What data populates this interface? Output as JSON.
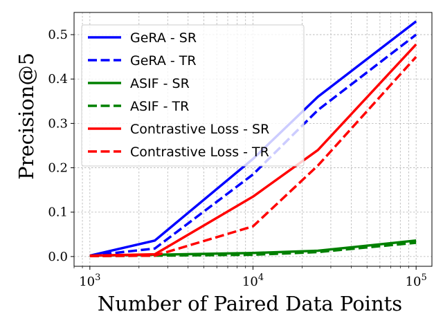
{
  "chart_data": {
    "type": "line",
    "title": "",
    "xlabel": "Number of Paired Data Points",
    "ylabel": "Precision@5",
    "xscale": "log",
    "x": [
      1000,
      2500,
      10000,
      25000,
      100000
    ],
    "xlim": [
      800,
      125000
    ],
    "ylim": [
      -0.022,
      0.55
    ],
    "xticks": [
      {
        "value": 1000,
        "base": "10",
        "exp": "3"
      },
      {
        "value": 10000,
        "base": "10",
        "exp": "4"
      },
      {
        "value": 100000,
        "base": "10",
        "exp": "5"
      }
    ],
    "yticks": [
      {
        "value": 0.0,
        "label": "0.0"
      },
      {
        "value": 0.1,
        "label": "0.1"
      },
      {
        "value": 0.2,
        "label": "0.2"
      },
      {
        "value": 0.3,
        "label": "0.3"
      },
      {
        "value": 0.4,
        "label": "0.4"
      },
      {
        "value": 0.5,
        "label": "0.5"
      }
    ],
    "grid": true,
    "legend_position": "top-left",
    "series": [
      {
        "name": "GeRA - SR",
        "color": "#0000ff",
        "style": "solid",
        "values": [
          0.002,
          0.036,
          0.22,
          0.36,
          0.53
        ]
      },
      {
        "name": "GeRA - TR",
        "color": "#0000ff",
        "style": "dashed",
        "values": [
          0.002,
          0.018,
          0.185,
          0.33,
          0.5
        ]
      },
      {
        "name": "ASIF - SR",
        "color": "#008000",
        "style": "solid",
        "values": [
          0.002,
          0.004,
          0.008,
          0.013,
          0.036
        ]
      },
      {
        "name": "ASIF - TR",
        "color": "#008000",
        "style": "dashed",
        "values": [
          0.001,
          0.002,
          0.004,
          0.01,
          0.031
        ]
      },
      {
        "name": "Contrastive Loss - SR",
        "color": "#ff0000",
        "style": "solid",
        "values": [
          0.002,
          0.005,
          0.135,
          0.24,
          0.478
        ]
      },
      {
        "name": "Contrastive Loss - TR",
        "color": "#ff0000",
        "style": "dashed",
        "values": [
          0.001,
          0.002,
          0.068,
          0.205,
          0.45
        ]
      }
    ]
  }
}
